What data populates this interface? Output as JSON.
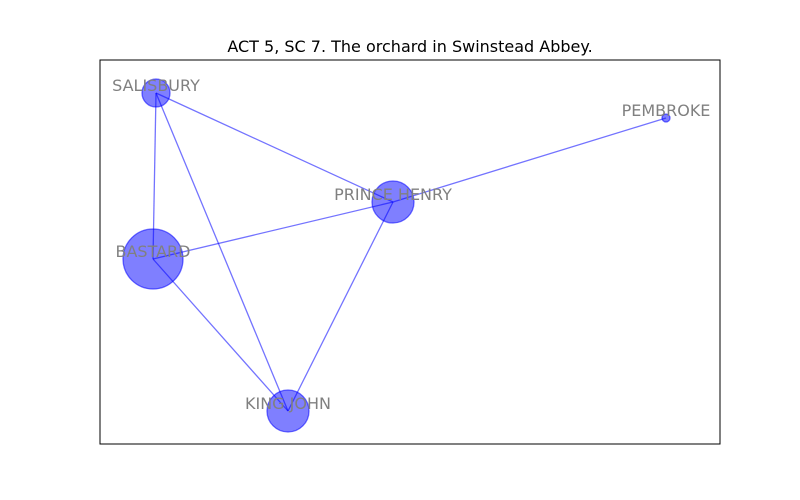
{
  "title": "ACT 5, SC 7. The orchard in Swinstead Abbey.",
  "colors": {
    "node": "#0000ff",
    "edge": "#0000ff",
    "label": "#808080",
    "frame": "#000000"
  },
  "nodes": [
    {
      "id": "SALISBURY",
      "label": "SALISBURY",
      "size": "small"
    },
    {
      "id": "PEMBROKE",
      "label": "PEMBROKE",
      "size": "tiny"
    },
    {
      "id": "PRINCE HENRY",
      "label": "PRINCE HENRY",
      "size": "medium"
    },
    {
      "id": "BASTARD",
      "label": "BASTARD",
      "size": "large"
    },
    {
      "id": "KING JOHN",
      "label": "KING JOHN",
      "size": "medium"
    }
  ],
  "edges": [
    [
      "SALISBURY",
      "BASTARD"
    ],
    [
      "SALISBURY",
      "PRINCE HENRY"
    ],
    [
      "SALISBURY",
      "KING JOHN"
    ],
    [
      "BASTARD",
      "PRINCE HENRY"
    ],
    [
      "BASTARD",
      "KING JOHN"
    ],
    [
      "PRINCE HENRY",
      "KING JOHN"
    ],
    [
      "PRINCE HENRY",
      "PEMBROKE"
    ]
  ]
}
